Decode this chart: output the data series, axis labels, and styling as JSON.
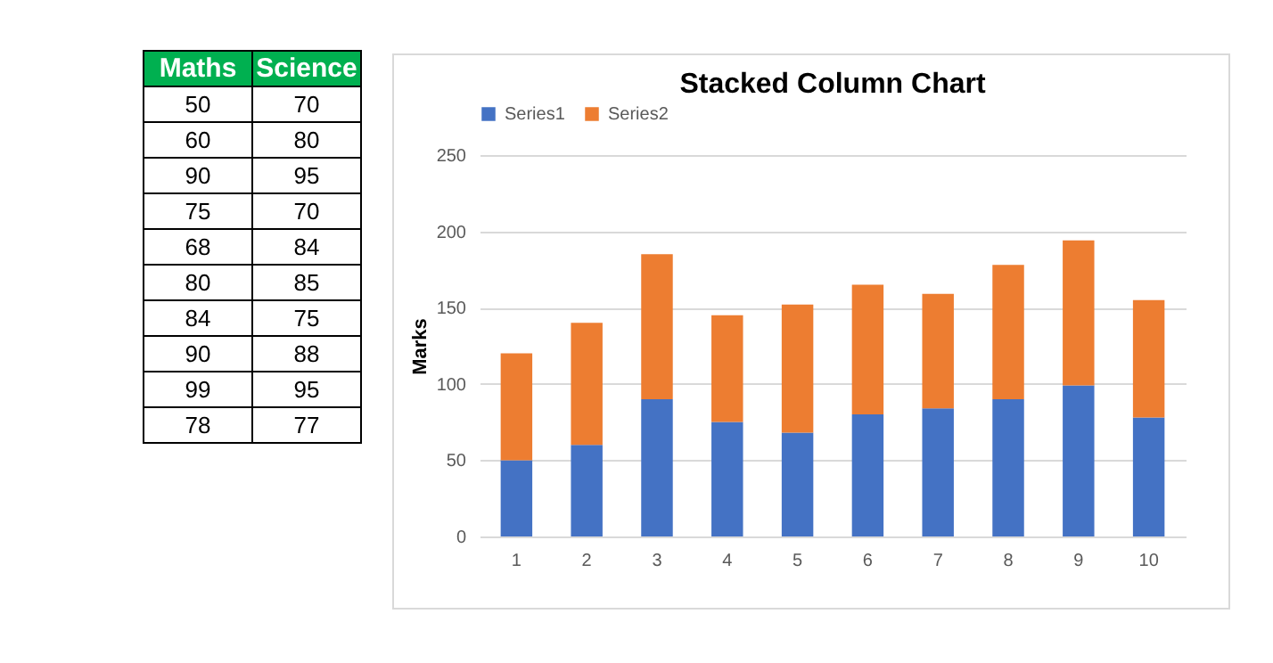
{
  "chart_data": [
    {
      "type": "other",
      "annotations": [
        "Maths",
        "Science",
        "50",
        "70",
        "60",
        "80",
        "90",
        "95",
        "75",
        "70",
        "68",
        "84",
        "80",
        "85",
        "84",
        "75",
        "90",
        "88",
        "99",
        "95",
        "78",
        "77"
      ]
    },
    {
      "type": "bar",
      "title": "Stacked Column Chart",
      "ylabel": "Marks",
      "categories": [
        "1",
        "2",
        "3",
        "4",
        "5",
        "6",
        "7",
        "8",
        "9",
        "10"
      ],
      "series": [
        {
          "name": "Series1",
          "color": "#4472c4",
          "values": [
            50,
            60,
            90,
            75,
            68,
            80,
            84,
            90,
            99,
            78
          ]
        },
        {
          "name": "Series2",
          "color": "#ed7d31",
          "values": [
            70,
            80,
            95,
            70,
            84,
            85,
            75,
            88,
            95,
            77
          ]
        }
      ],
      "stacked": true,
      "ylim": [
        0,
        250
      ],
      "yticks": [
        0,
        50,
        100,
        150,
        200,
        250
      ],
      "grid": "y",
      "legend": "top"
    }
  ]
}
